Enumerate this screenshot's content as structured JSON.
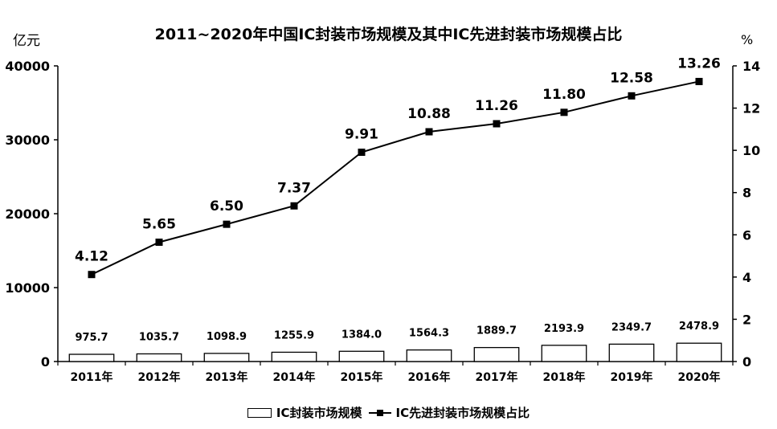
{
  "chart_data": {
    "type": "bar+line",
    "title": "2011~2020年中国IC封装市场规模及其中IC先进封装市场规模占比",
    "categories": [
      "2011年",
      "2012年",
      "2013年",
      "2014年",
      "2015年",
      "2016年",
      "2017年",
      "2018年",
      "2019年",
      "2020年"
    ],
    "series": [
      {
        "name": "IC封装市场规模",
        "type": "bar",
        "axis": "left",
        "values": [
          975.7,
          1035.7,
          1098.9,
          1255.9,
          1384.0,
          1564.3,
          1889.7,
          2193.9,
          2349.7,
          2478.9
        ],
        "labels": [
          "975.7",
          "1035.7",
          "1098.9",
          "1255.9",
          "1384.0",
          "1564.3",
          "1889.7",
          "2193.9",
          "2349.7",
          "2478.9"
        ]
      },
      {
        "name": "IC先进封装市场规模占比",
        "type": "line",
        "axis": "right",
        "values": [
          4.12,
          5.65,
          6.5,
          7.37,
          9.91,
          10.88,
          11.26,
          11.8,
          12.58,
          13.26
        ],
        "labels": [
          "4.12",
          "5.65",
          "6.50",
          "7.37",
          "9.91",
          "10.88",
          "11.26",
          "11.80",
          "12.58",
          "13.26"
        ]
      }
    ],
    "y_left": {
      "unit": "亿元",
      "ylim": [
        0,
        40000
      ],
      "ticks": [
        "0",
        "10000",
        "20000",
        "30000",
        "40000"
      ]
    },
    "y_right": {
      "unit": "%",
      "ylim": [
        0,
        14
      ],
      "ticks": [
        "0",
        "2",
        "4",
        "6",
        "8",
        "10",
        "12",
        "14"
      ]
    },
    "grid": false,
    "legend_position": "bottom"
  }
}
